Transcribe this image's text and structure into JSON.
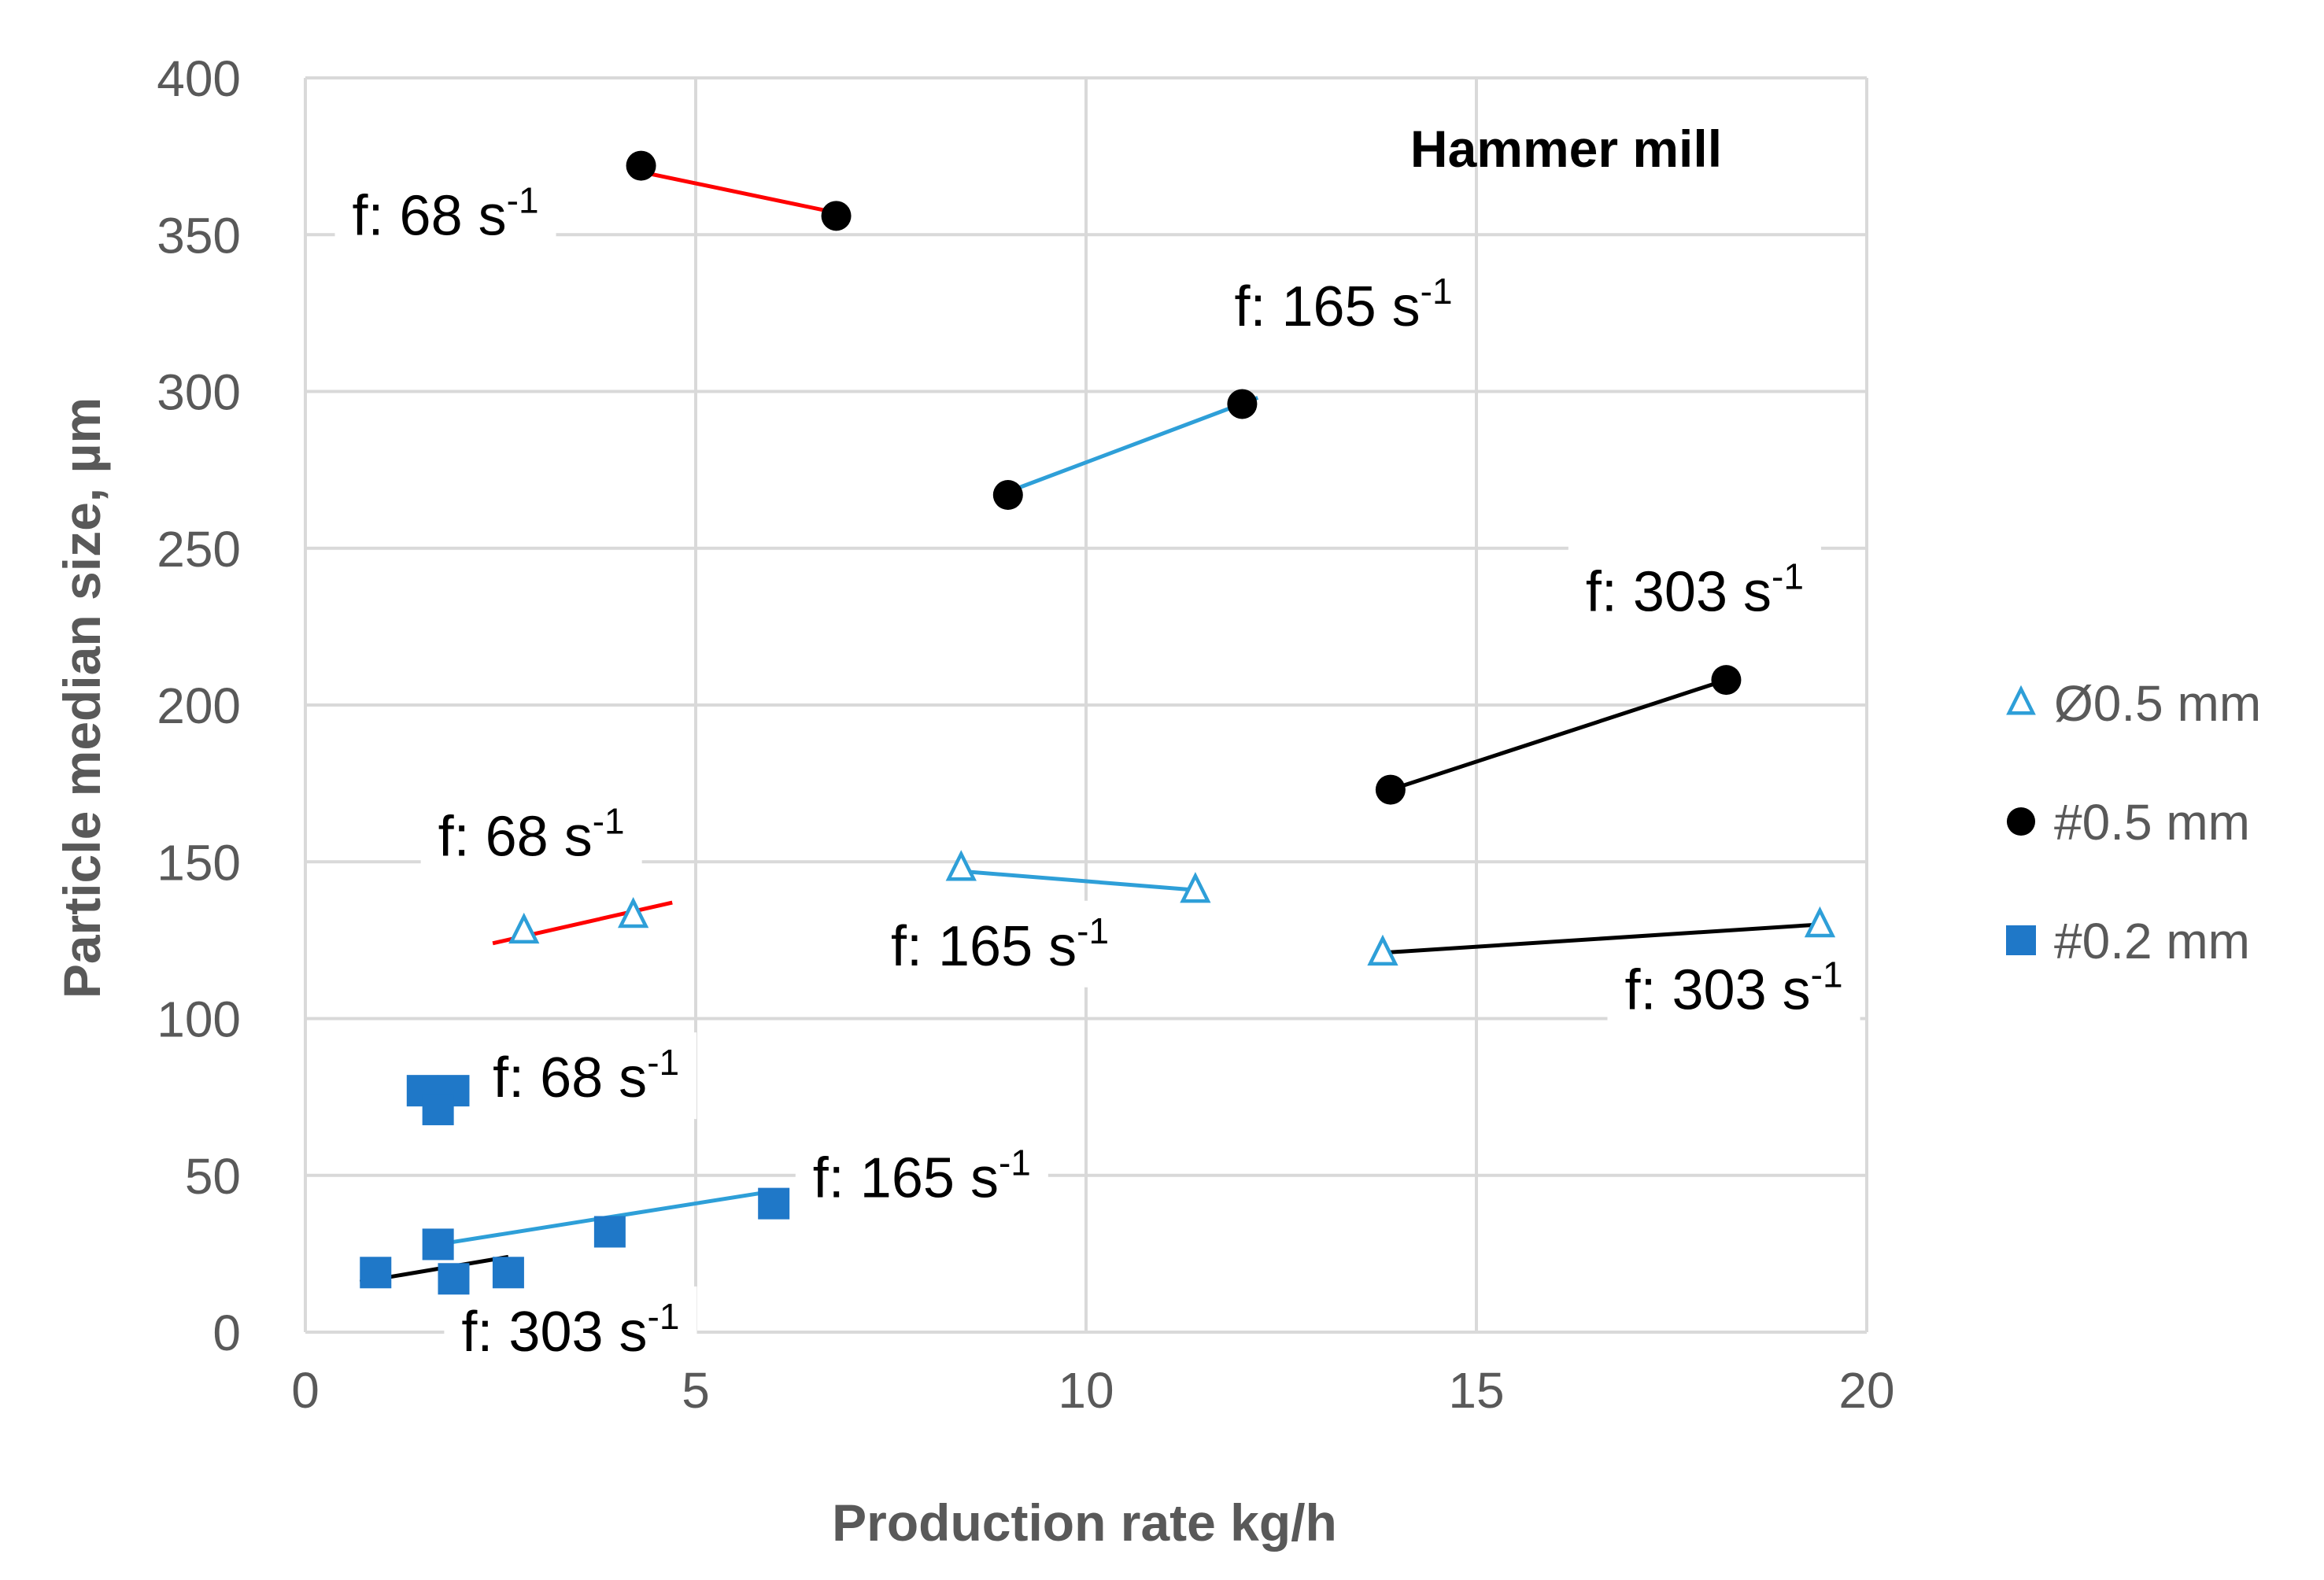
{
  "chart_data": {
    "type": "scatter",
    "title": "Hammer mill",
    "xlabel": "Production rate kg/h",
    "ylabel": "Particle median size, µm",
    "xlim": [
      0,
      20
    ],
    "ylim": [
      0,
      400
    ],
    "xticks": [
      0,
      5,
      10,
      15,
      20
    ],
    "yticks": [
      0,
      50,
      100,
      150,
      200,
      250,
      300,
      350,
      400
    ],
    "xtick_labels": [
      "0",
      "5",
      "10",
      "15",
      "20"
    ],
    "ytick_labels": [
      "0",
      "50",
      "100",
      "150",
      "200",
      "250",
      "300",
      "350",
      "400"
    ],
    "grid": true,
    "legend_position": "right",
    "series": [
      {
        "name": "Ø0.5 mm",
        "marker": "triangle-open",
        "color": "#2e9fd8",
        "points": [
          {
            "x": 2.8,
            "y": 128
          },
          {
            "x": 4.2,
            "y": 133
          },
          {
            "x": 8.4,
            "y": 148
          },
          {
            "x": 11.4,
            "y": 141
          },
          {
            "x": 13.8,
            "y": 121
          },
          {
            "x": 19.4,
            "y": 130
          }
        ]
      },
      {
        "name": "#0.5 mm",
        "marker": "circle",
        "color": "#000000",
        "points": [
          {
            "x": 4.3,
            "y": 372
          },
          {
            "x": 6.8,
            "y": 356
          },
          {
            "x": 9.0,
            "y": 267
          },
          {
            "x": 12.0,
            "y": 296
          },
          {
            "x": 13.9,
            "y": 173
          },
          {
            "x": 18.2,
            "y": 208
          }
        ]
      },
      {
        "name": "#0.2 mm",
        "marker": "square",
        "color": "#1f78c8",
        "points": [
          {
            "x": 1.5,
            "y": 77
          },
          {
            "x": 1.9,
            "y": 77
          },
          {
            "x": 1.7,
            "y": 71
          },
          {
            "x": 0.9,
            "y": 19
          },
          {
            "x": 1.7,
            "y": 28
          },
          {
            "x": 1.9,
            "y": 17
          },
          {
            "x": 2.6,
            "y": 19
          },
          {
            "x": 3.9,
            "y": 32
          },
          {
            "x": 6.0,
            "y": 41
          }
        ]
      }
    ],
    "trend_lines": [
      {
        "color": "#ff0000",
        "x": [
          4.3,
          6.8
        ],
        "y": [
          370,
          357
        ]
      },
      {
        "color": "#2e9fd8",
        "x": [
          9.0,
          12.2
        ],
        "y": [
          268,
          298
        ]
      },
      {
        "color": "#000000",
        "x": [
          13.9,
          18.2
        ],
        "y": [
          173,
          208
        ]
      },
      {
        "color": "#ff0000",
        "x": [
          2.4,
          4.7
        ],
        "y": [
          124,
          137
        ]
      },
      {
        "color": "#2e9fd8",
        "x": [
          8.4,
          11.4
        ],
        "y": [
          147,
          141
        ]
      },
      {
        "color": "#000000",
        "x": [
          13.8,
          19.4
        ],
        "y": [
          121,
          130
        ]
      },
      {
        "color": "#2e9fd8",
        "x": [
          1.7,
          6.0
        ],
        "y": [
          28,
          45
        ]
      },
      {
        "color": "#000000",
        "x": [
          0.7,
          2.6
        ],
        "y": [
          16,
          24
        ]
      }
    ],
    "annotations": [
      {
        "base": "f: 68 s",
        "sup": "-1",
        "x": 0.6,
        "y": 350
      },
      {
        "base": "f: 165 s",
        "sup": "-1",
        "x": 11.9,
        "y": 321
      },
      {
        "base": "f: 303 s",
        "sup": "-1",
        "x": 16.4,
        "y": 230
      },
      {
        "base": "f: 68 s",
        "sup": "-1",
        "x": 1.7,
        "y": 152
      },
      {
        "base": "f: 165 s",
        "sup": "-1",
        "x": 7.5,
        "y": 117
      },
      {
        "base": "f: 303 s",
        "sup": "-1",
        "x": 16.9,
        "y": 103
      },
      {
        "base": "f: 68 s",
        "sup": "-1",
        "x": 2.4,
        "y": 75
      },
      {
        "base": "f: 165 s",
        "sup": "-1",
        "x": 6.5,
        "y": 43
      },
      {
        "base": "f: 303 s",
        "sup": "-1",
        "x": 2.0,
        "y": -6
      }
    ]
  }
}
